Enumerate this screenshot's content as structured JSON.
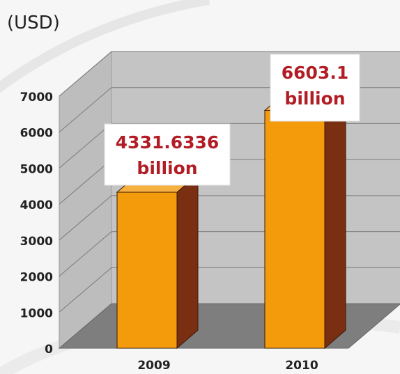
{
  "chart_data": {
    "type": "bar",
    "unit_label": "(USD)",
    "categories": [
      "2009",
      "2010"
    ],
    "values": [
      4331.6336,
      6603.1
    ],
    "data_labels": [
      {
        "line1": "4331.6336",
        "line2": "billion"
      },
      {
        "line1": "6603.1",
        "line2": "billion"
      }
    ],
    "ylim": [
      0,
      7000
    ],
    "y_ticks": [
      "0",
      "1000",
      "2000",
      "3000",
      "4000",
      "5000",
      "6000",
      "7000"
    ],
    "grid": true,
    "style": "3d",
    "colors": {
      "bar_front": "#f49b0c",
      "bar_side": "#7a2e12",
      "bar_top": "#f7b040",
      "back_wall": "#c4c4c4",
      "side_wall": "#bdbdbd",
      "floor": "#7e7e7e",
      "label_text": "#b21c24"
    }
  }
}
